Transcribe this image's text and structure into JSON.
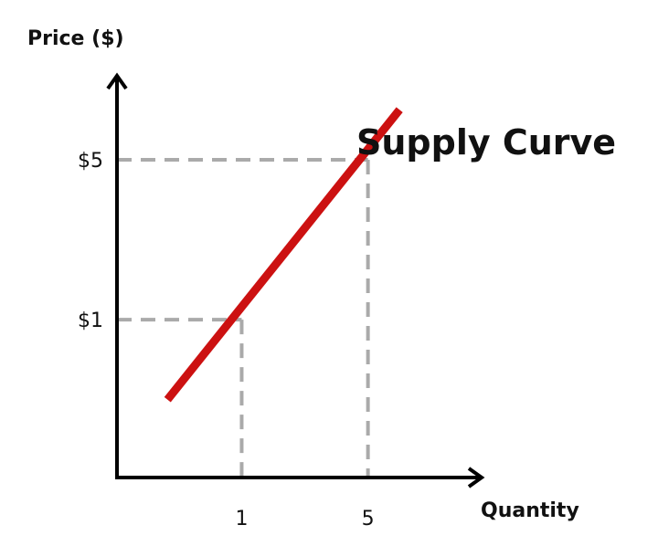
{
  "chart_data": {
    "type": "line",
    "title": "Supply Curve",
    "xlabel": "Quantity",
    "ylabel": "Price ($)",
    "x_ticks": [
      {
        "value": 1,
        "label": "1"
      },
      {
        "value": 5,
        "label": "5"
      }
    ],
    "y_ticks": [
      {
        "value": 1,
        "label": "$1"
      },
      {
        "value": 5,
        "label": "$5"
      }
    ],
    "xlim": [
      -2.95,
      8.6
    ],
    "ylim": [
      -2.95,
      7.1
    ],
    "series": [
      {
        "x": [
          -1.35,
          6.0
        ],
        "y": [
          -1.0,
          6.25
        ],
        "color": "#cc1111"
      }
    ],
    "reference_points": [
      {
        "x": 1,
        "y": 1
      },
      {
        "x": 5,
        "y": 5
      }
    ],
    "guide_color": "#aaaaaa",
    "axis_color": "#000000",
    "grid": false
  }
}
